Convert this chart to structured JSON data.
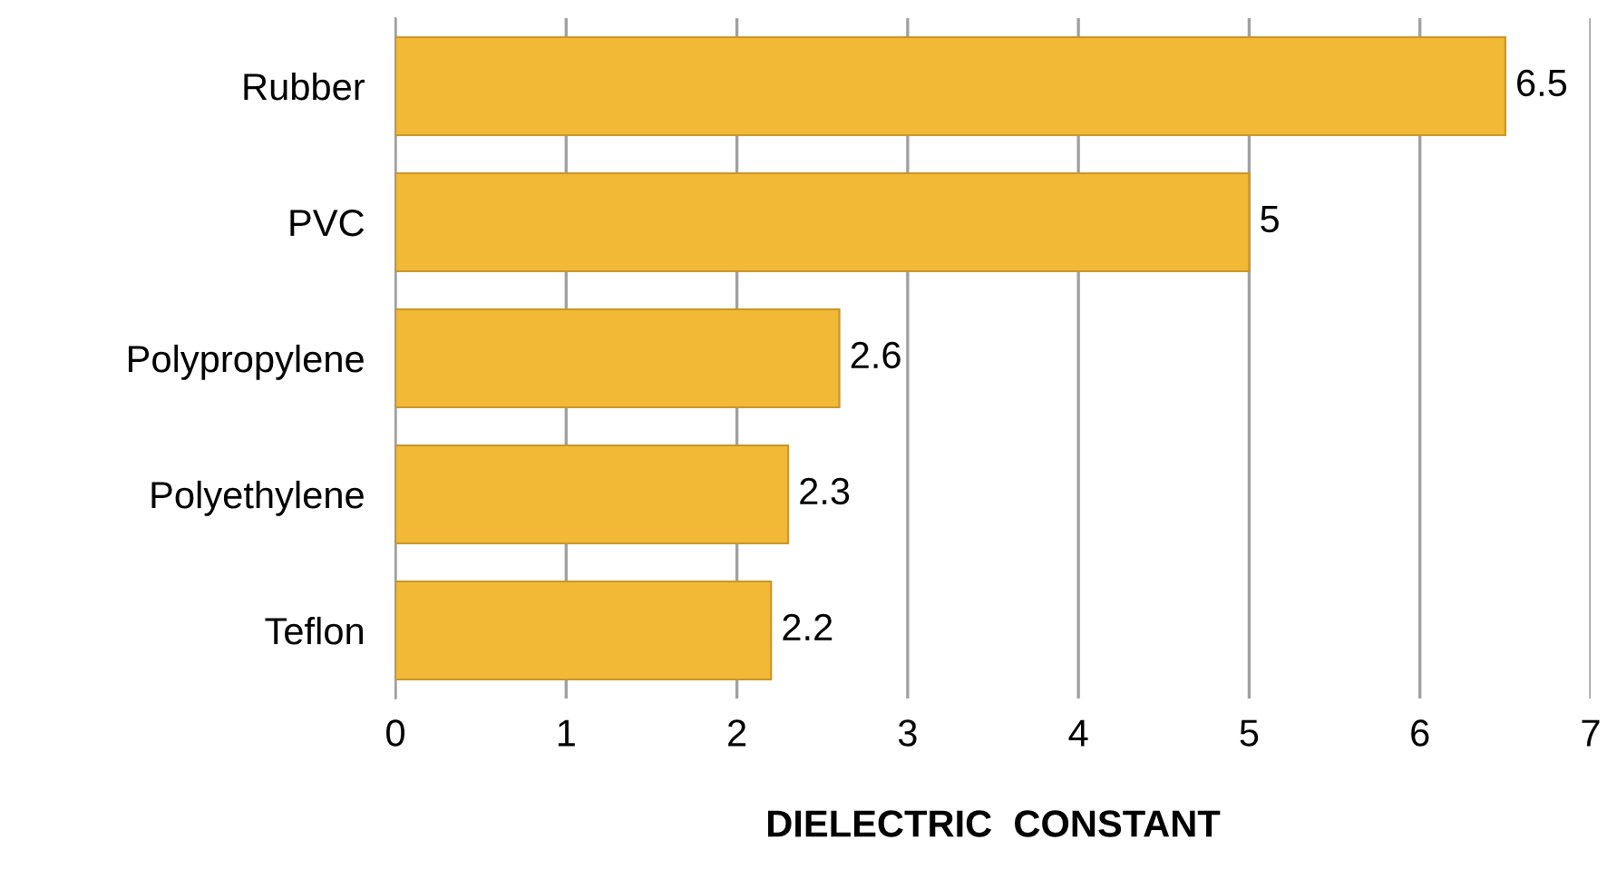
{
  "chart_data": {
    "type": "bar",
    "orientation": "horizontal",
    "xlabel": "DIELECTRIC  CONSTANT",
    "categories": [
      "Rubber",
      "PVC",
      "Polypropylene",
      "Polyethylene",
      "Teflon"
    ],
    "values": [
      6.5,
      5,
      2.6,
      2.3,
      2.2
    ],
    "color": "#f2b937",
    "xlim": [
      0,
      7
    ],
    "xticks": [
      0,
      1,
      2,
      3,
      4,
      5,
      6,
      7
    ],
    "grid": "x",
    "data_labels": true,
    "legend": false
  }
}
